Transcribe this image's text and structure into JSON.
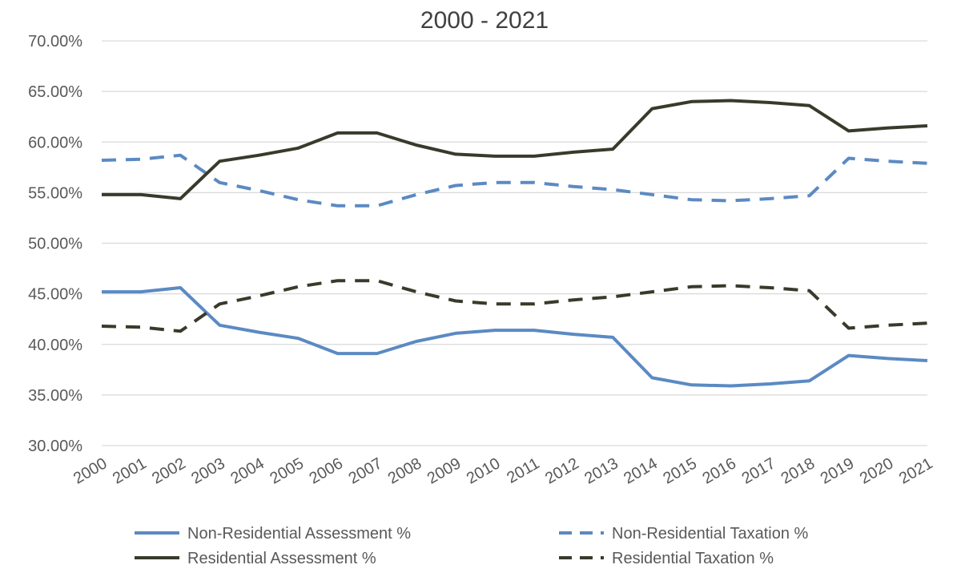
{
  "chart_data": {
    "type": "line",
    "title": "2000 - 2021",
    "xlabel": "",
    "ylabel": "",
    "ylim": [
      30,
      70
    ],
    "yticks": [
      "30.00%",
      "35.00%",
      "40.00%",
      "45.00%",
      "50.00%",
      "55.00%",
      "60.00%",
      "65.00%",
      "70.00%"
    ],
    "ytick_values": [
      30,
      35,
      40,
      45,
      50,
      55,
      60,
      65,
      70
    ],
    "grid": true,
    "legend_position": "bottom",
    "x": [
      "2000",
      "2001",
      "2002",
      "2003",
      "2004",
      "2005",
      "2006",
      "2007",
      "2008",
      "2009",
      "2010",
      "2011",
      "2012",
      "2013",
      "2014",
      "2015",
      "2016",
      "2017",
      "2018",
      "2019",
      "2020",
      "2021"
    ],
    "series": [
      {
        "name": "Non-Residential Assessment %",
        "color": "#5b8ac3",
        "dashed": false,
        "values": [
          45.2,
          45.2,
          45.6,
          41.9,
          41.2,
          40.6,
          39.1,
          39.1,
          40.3,
          41.1,
          41.4,
          41.4,
          41.0,
          40.7,
          36.7,
          36.0,
          35.9,
          36.1,
          36.4,
          38.9,
          38.6,
          38.4
        ]
      },
      {
        "name": "Non-Residential Taxation %",
        "color": "#5b8ac3",
        "dashed": true,
        "values": [
          58.2,
          58.3,
          58.7,
          56.0,
          55.2,
          54.3,
          53.7,
          53.7,
          54.8,
          55.7,
          56.0,
          56.0,
          55.6,
          55.3,
          54.8,
          54.3,
          54.2,
          54.4,
          54.7,
          58.4,
          58.1,
          57.9
        ]
      },
      {
        "name": "Residential Assessment %",
        "color": "#3a3a2c",
        "dashed": false,
        "values": [
          54.8,
          54.8,
          54.4,
          58.1,
          58.7,
          59.4,
          60.9,
          60.9,
          59.7,
          58.8,
          58.6,
          58.6,
          59.0,
          59.3,
          63.3,
          64.0,
          64.1,
          63.9,
          63.6,
          61.1,
          61.4,
          61.6
        ]
      },
      {
        "name": "Residential Taxation %",
        "color": "#3a3a2c",
        "dashed": true,
        "values": [
          41.8,
          41.7,
          41.3,
          44.0,
          44.8,
          45.7,
          46.3,
          46.3,
          45.2,
          44.3,
          44.0,
          44.0,
          44.4,
          44.7,
          45.2,
          45.7,
          45.8,
          45.6,
          45.3,
          41.6,
          41.9,
          42.1
        ]
      }
    ]
  }
}
